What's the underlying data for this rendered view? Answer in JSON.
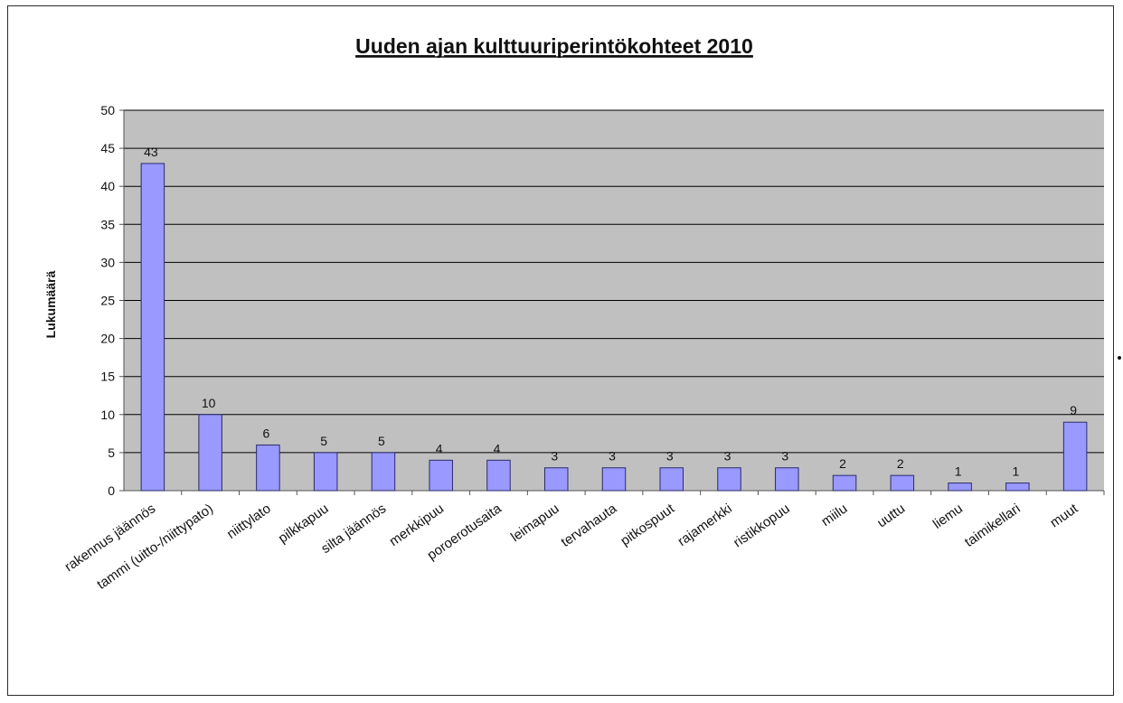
{
  "chart_data": {
    "type": "bar",
    "title": "Uuden ajan kulttuuriperintökohteet 2010",
    "xlabel": "",
    "ylabel": "Lukumäärä",
    "ylim": [
      0,
      50
    ],
    "yticks": [
      0,
      5,
      10,
      15,
      20,
      25,
      30,
      35,
      40,
      45,
      50
    ],
    "grid": true,
    "legend": "none",
    "categories": [
      "rakennus jäännös",
      "tammi (uitto-/niittypato)",
      "niittylato",
      "pilkkapuu",
      "silta jäännös",
      "merkkipuu",
      "poroerotusaita",
      "leimapuu",
      "tervahauta",
      "pitkospuut",
      "rajamerkki",
      "ristikkopuu",
      "miilu",
      "uuttu",
      "liemu",
      "taimikellari",
      "muut"
    ],
    "values": [
      43,
      10,
      6,
      5,
      5,
      4,
      4,
      3,
      3,
      3,
      3,
      3,
      2,
      2,
      1,
      1,
      9
    ],
    "colors": {
      "bar_fill": "#9999ff",
      "bar_stroke": "#2b2b6b",
      "plot_background": "#c0c0c0",
      "gridline": "#000000"
    }
  }
}
